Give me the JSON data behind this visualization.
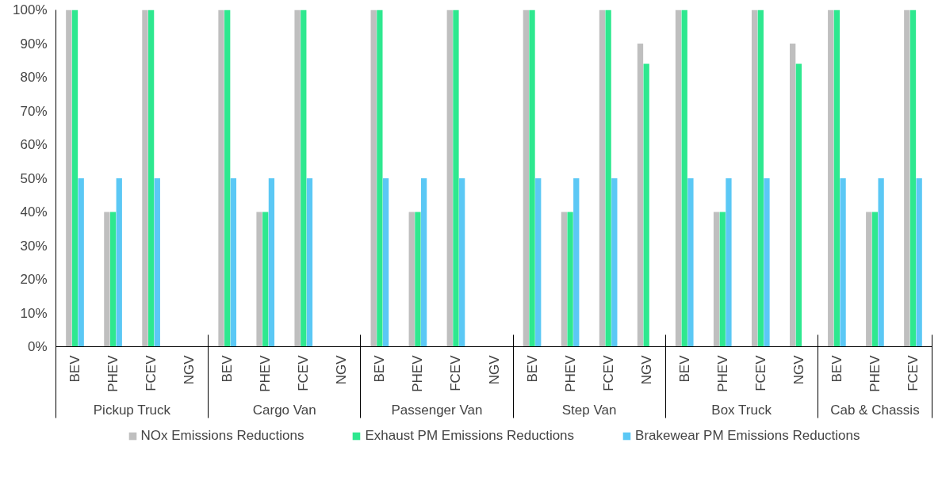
{
  "chart_data": {
    "type": "bar",
    "categories": [
      "BEV",
      "PHEV",
      "FCEV",
      "NGV",
      "BEV",
      "PHEV",
      "FCEV",
      "NGV",
      "BEV",
      "PHEV",
      "FCEV",
      "NGV",
      "BEV",
      "PHEV",
      "FCEV",
      "NGV",
      "BEV",
      "PHEV",
      "FCEV",
      "NGV",
      "BEV",
      "PHEV",
      "FCEV"
    ],
    "series": [
      {
        "name": "NOx Emissions Reductions",
        "color": "#bfbfbf",
        "values": [
          100,
          40,
          100,
          null,
          100,
          40,
          100,
          null,
          100,
          40,
          100,
          null,
          100,
          40,
          100,
          90,
          100,
          40,
          100,
          90,
          100,
          40,
          100
        ]
      },
      {
        "name": "Exhaust PM Emissions Reductions",
        "color": "#2ee88f",
        "values": [
          100,
          40,
          100,
          null,
          100,
          40,
          100,
          null,
          100,
          40,
          100,
          null,
          100,
          40,
          100,
          84,
          100,
          40,
          100,
          84,
          100,
          40,
          100
        ]
      },
      {
        "name": "Brakewear PM Emissions Reductions",
        "color": "#5bc8f5",
        "values": [
          50,
          50,
          50,
          null,
          50,
          50,
          50,
          null,
          50,
          50,
          50,
          null,
          50,
          50,
          50,
          null,
          50,
          50,
          50,
          null,
          50,
          50,
          50
        ]
      }
    ],
    "annotations": [
      "Pickup Truck",
      "Cargo Van",
      "Passenger Van",
      "Step Van",
      "Box Truck",
      "Cab & Chassis"
    ],
    "ylim": [
      0,
      100
    ],
    "yticks": [
      {
        "value": 0,
        "label": "0%"
      },
      {
        "value": 10,
        "label": "10%"
      },
      {
        "value": 20,
        "label": "20%"
      },
      {
        "value": 30,
        "label": "30%"
      },
      {
        "value": 40,
        "label": "40%"
      },
      {
        "value": 50,
        "label": "50%"
      },
      {
        "value": 60,
        "label": "60%"
      },
      {
        "value": 70,
        "label": "70%"
      },
      {
        "value": 80,
        "label": "80%"
      },
      {
        "value": 90,
        "label": "90%"
      },
      {
        "value": 100,
        "label": "100%"
      }
    ],
    "grid": false,
    "legend": "bottom"
  }
}
